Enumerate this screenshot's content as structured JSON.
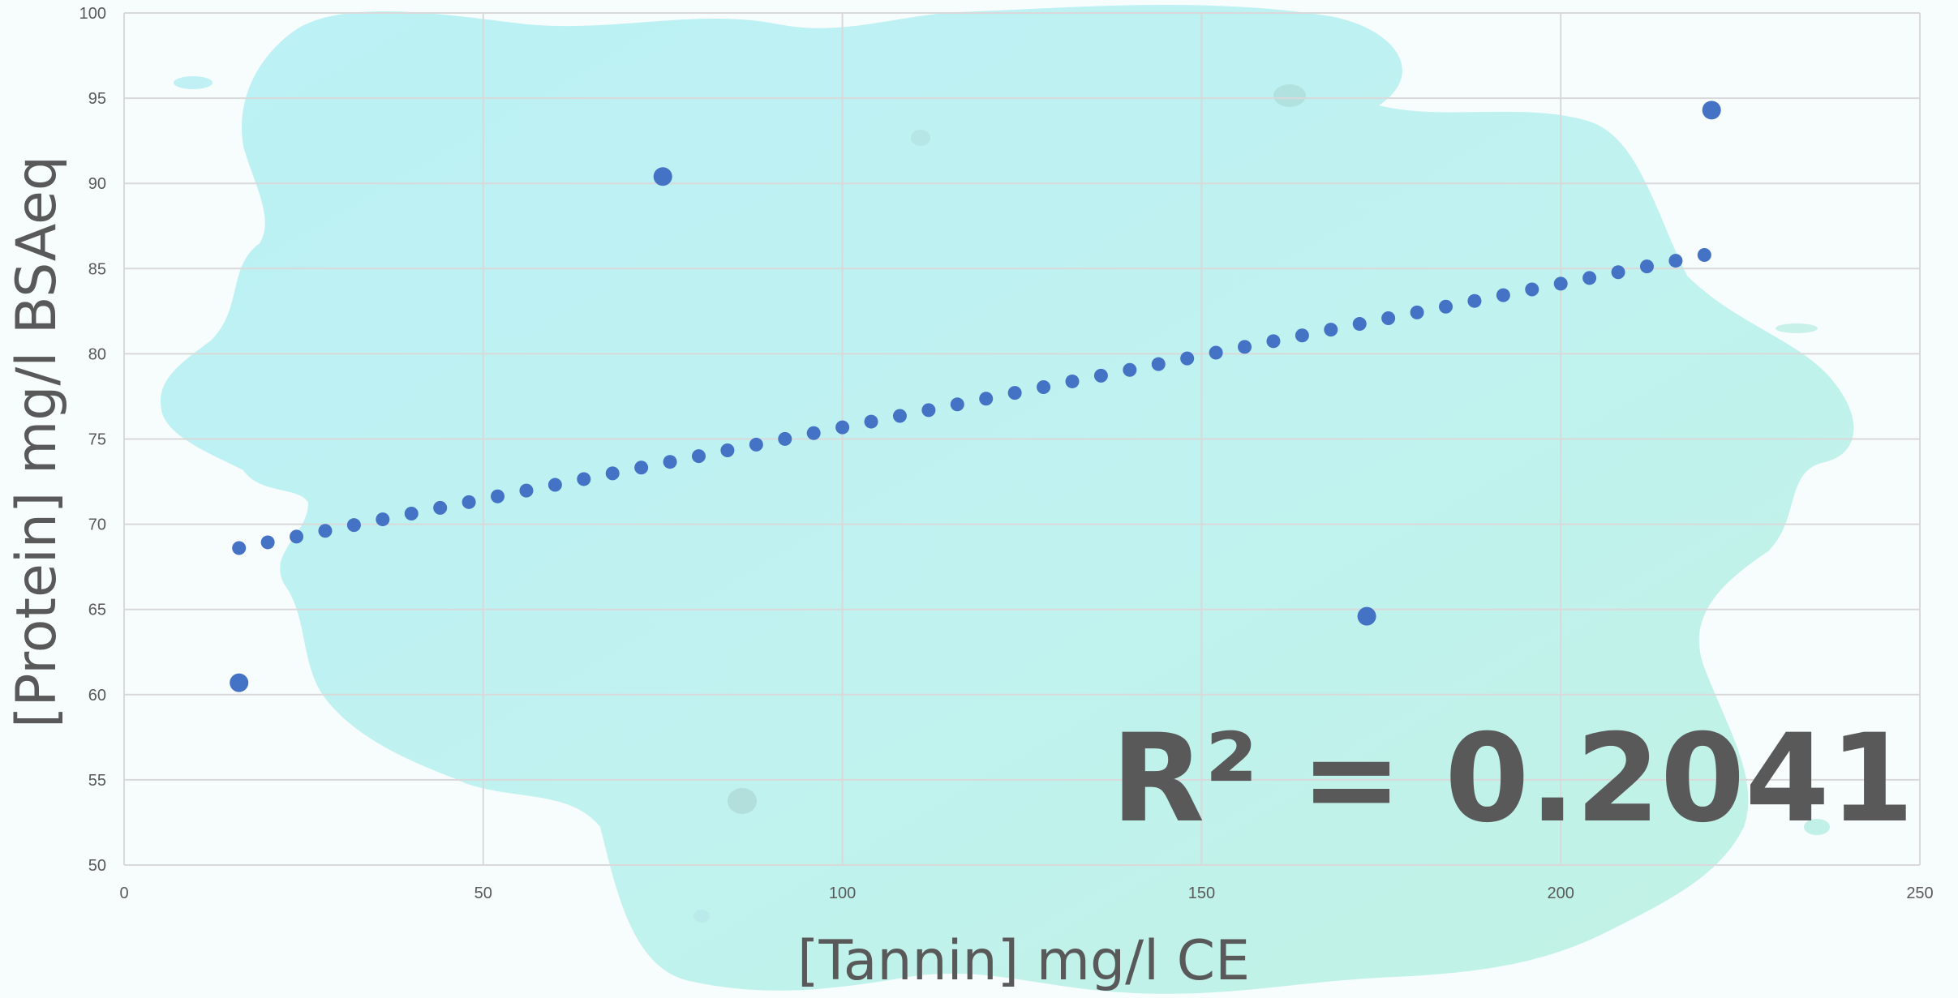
{
  "chart_data": {
    "type": "scatter",
    "title": "",
    "xlabel": "[Tannin] mg/l CE",
    "ylabel": "[Protein] mg/l BSAeq",
    "xlim": [
      0,
      250
    ],
    "ylim": [
      50,
      100
    ],
    "x_ticks": [
      "0",
      "50",
      "100",
      "150",
      "200",
      "250"
    ],
    "y_ticks": [
      "50",
      "55",
      "60",
      "65",
      "70",
      "75",
      "80",
      "85",
      "90",
      "95",
      "100"
    ],
    "grid": true,
    "series": [
      {
        "points": [
          {
            "x": 16,
            "y": 60.7
          },
          {
            "x": 75,
            "y": 90.4
          },
          {
            "x": 173,
            "y": 64.6
          },
          {
            "x": 221,
            "y": 94.3
          }
        ],
        "color": "#4472c4"
      }
    ],
    "trendline": {
      "style": "dotted",
      "color": "#4472c4",
      "x_range": [
        16,
        220
      ],
      "y_range": [
        68.6,
        85.8
      ]
    },
    "annotation": "R² = 0.2041",
    "background": {
      "splash_colors": [
        "#b9f1f4",
        "#c1f1ef",
        "#bff2e6"
      ]
    }
  }
}
